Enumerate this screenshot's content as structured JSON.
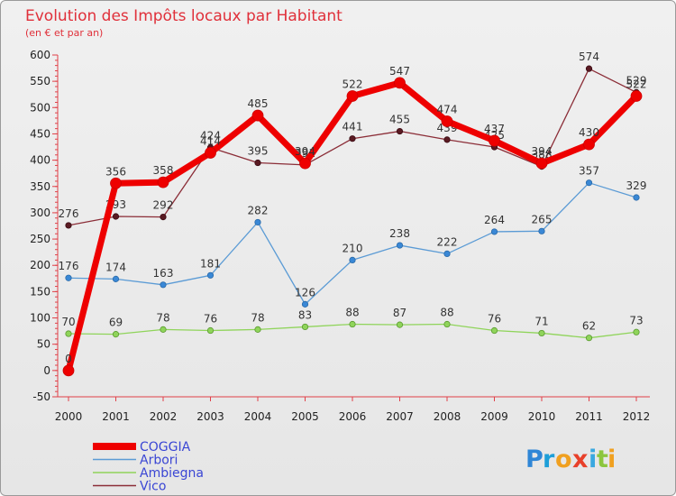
{
  "chart_data": {
    "type": "line",
    "title": "Evolution des Impôts locaux par Habitant",
    "subtitle": "(en € et par an)",
    "x": [
      "2000",
      "2001",
      "2002",
      "2003",
      "2004",
      "2005",
      "2006",
      "2007",
      "2008",
      "2009",
      "2010",
      "2011",
      "2012"
    ],
    "ylim": [
      -50,
      600
    ],
    "yticks": [
      -50,
      0,
      50,
      100,
      150,
      200,
      250,
      300,
      350,
      400,
      450,
      500,
      550,
      600
    ],
    "grid": false,
    "legend_position": "bottom-left",
    "series": [
      {
        "name": "Arbori",
        "color": "#5b9bd5",
        "values": [
          176,
          174,
          163,
          181,
          282,
          126,
          210,
          238,
          222,
          264,
          265,
          357,
          329
        ]
      },
      {
        "name": "Ambiegna",
        "color": "#8fd45a",
        "values": [
          70,
          69,
          78,
          76,
          78,
          83,
          88,
          87,
          88,
          76,
          71,
          62,
          73
        ]
      },
      {
        "name": "Vico",
        "color": "#8b2d37",
        "values": [
          276,
          293,
          292,
          424,
          395,
          391,
          441,
          455,
          439,
          425,
          388,
          574,
          529
        ]
      },
      {
        "name": "COGGIA",
        "color": "#ee0000",
        "values": [
          0,
          356,
          358,
          414,
          485,
          394,
          522,
          547,
          474,
          437,
          394,
          430,
          522
        ]
      }
    ],
    "legend_order": [
      "COGGIA",
      "Arbori",
      "Ambiegna",
      "Vico"
    ]
  },
  "brand": {
    "letters": [
      "P",
      "r",
      "o",
      "x",
      "i",
      "t",
      "i"
    ],
    "colors": [
      "#2f86d6",
      "#1e9fd8",
      "#f0a020",
      "#e8402a",
      "#3aa8e0",
      "#8cc63e",
      "#f0a020"
    ]
  }
}
